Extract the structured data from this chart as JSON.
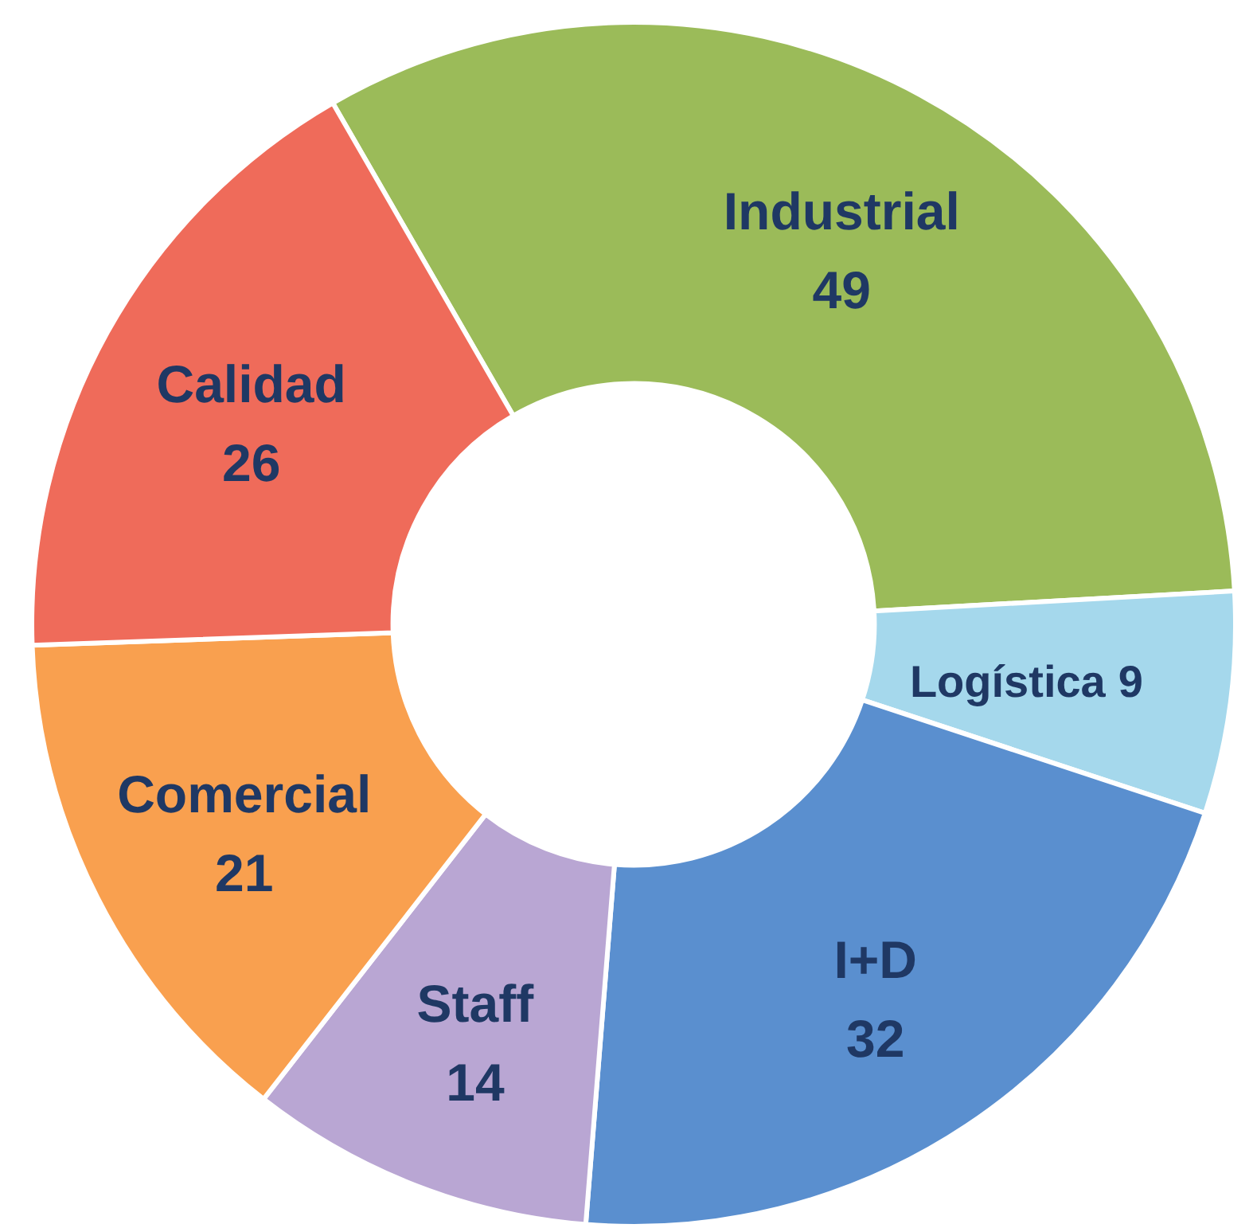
{
  "chart_data": {
    "type": "donut",
    "categories": [
      "Industrial",
      "Logística",
      "I+D",
      "Staff",
      "Comercial",
      "Calidad"
    ],
    "values": [
      49,
      9,
      32,
      14,
      21,
      26
    ],
    "colors": [
      "#9bbb59",
      "#a5d8ec",
      "#5a8fcf",
      "#b9a6d3",
      "#f9a04f",
      "#ef6b5a"
    ],
    "data_labels": true
  }
}
